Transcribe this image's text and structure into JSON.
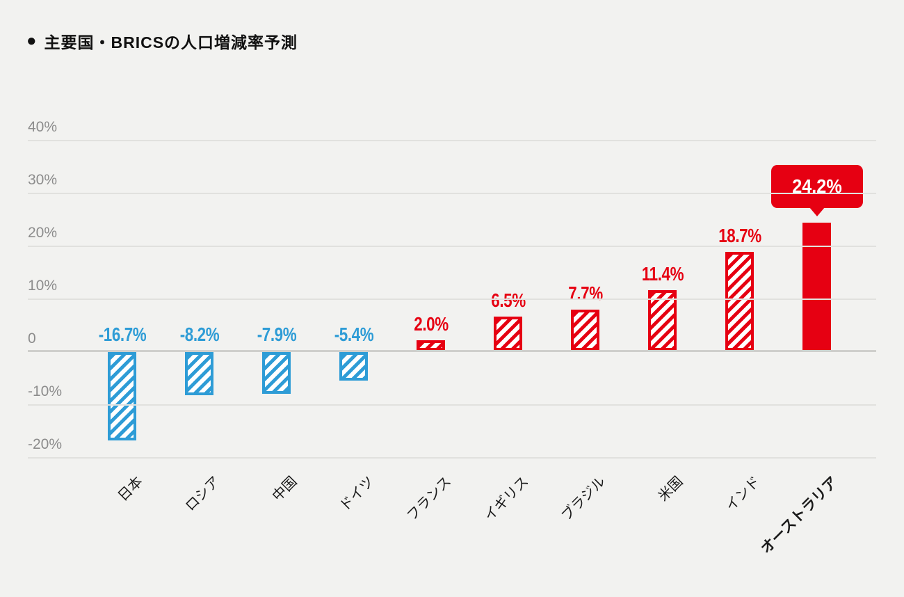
{
  "header": {
    "bullet": "●",
    "title": "主要国・BRICSの人口増減率予測"
  },
  "chart_data": {
    "type": "bar",
    "title": "主要国・BRICSの人口増減率予測",
    "categories": [
      "日本",
      "ロシア",
      "中国",
      "ドイツ",
      "フランス",
      "イギリス",
      "ブラジル",
      "米国",
      "インド",
      "オーストラリア"
    ],
    "values": [
      -16.7,
      -8.2,
      -7.9,
      -5.4,
      2.0,
      6.5,
      7.7,
      11.4,
      18.7,
      24.2
    ],
    "labels": [
      "-16.7%",
      "-8.2%",
      "-7.9%",
      "-5.4%",
      "2.0%",
      "6.5%",
      "7.7%",
      "11.4%",
      "18.7%",
      "24.2%"
    ],
    "xlabel": "",
    "ylabel": "",
    "yticks": [
      {
        "value": 40,
        "label": "40%"
      },
      {
        "value": 30,
        "label": "30%"
      },
      {
        "value": 20,
        "label": "20%"
      },
      {
        "value": 10,
        "label": "10%"
      },
      {
        "value": 0,
        "label": "0"
      },
      {
        "value": -10,
        "label": "-10%"
      },
      {
        "value": -20,
        "label": "-20%"
      }
    ],
    "ylim": [
      -20,
      40
    ],
    "grid": true,
    "legend": false,
    "highlight_index": 9,
    "annotations": [
      {
        "type": "callout-bubble",
        "text": "24.2%",
        "target": "オーストラリア"
      }
    ],
    "bar_style": {
      "negative": "blue diagonal hatch with solid border",
      "positive": "red diagonal hatch with solid border",
      "highlight": "solid red"
    },
    "colors": {
      "negative": "#2e9cd6",
      "positive": "#e60012"
    }
  },
  "theme": {
    "background": "#f2f2f0",
    "grid_color": "#e1e1de",
    "zero_line_color": "#cfcfcc",
    "tick_color": "#8c8c8c",
    "title_color": "#111111",
    "callout_text_color": "#ffffff"
  }
}
